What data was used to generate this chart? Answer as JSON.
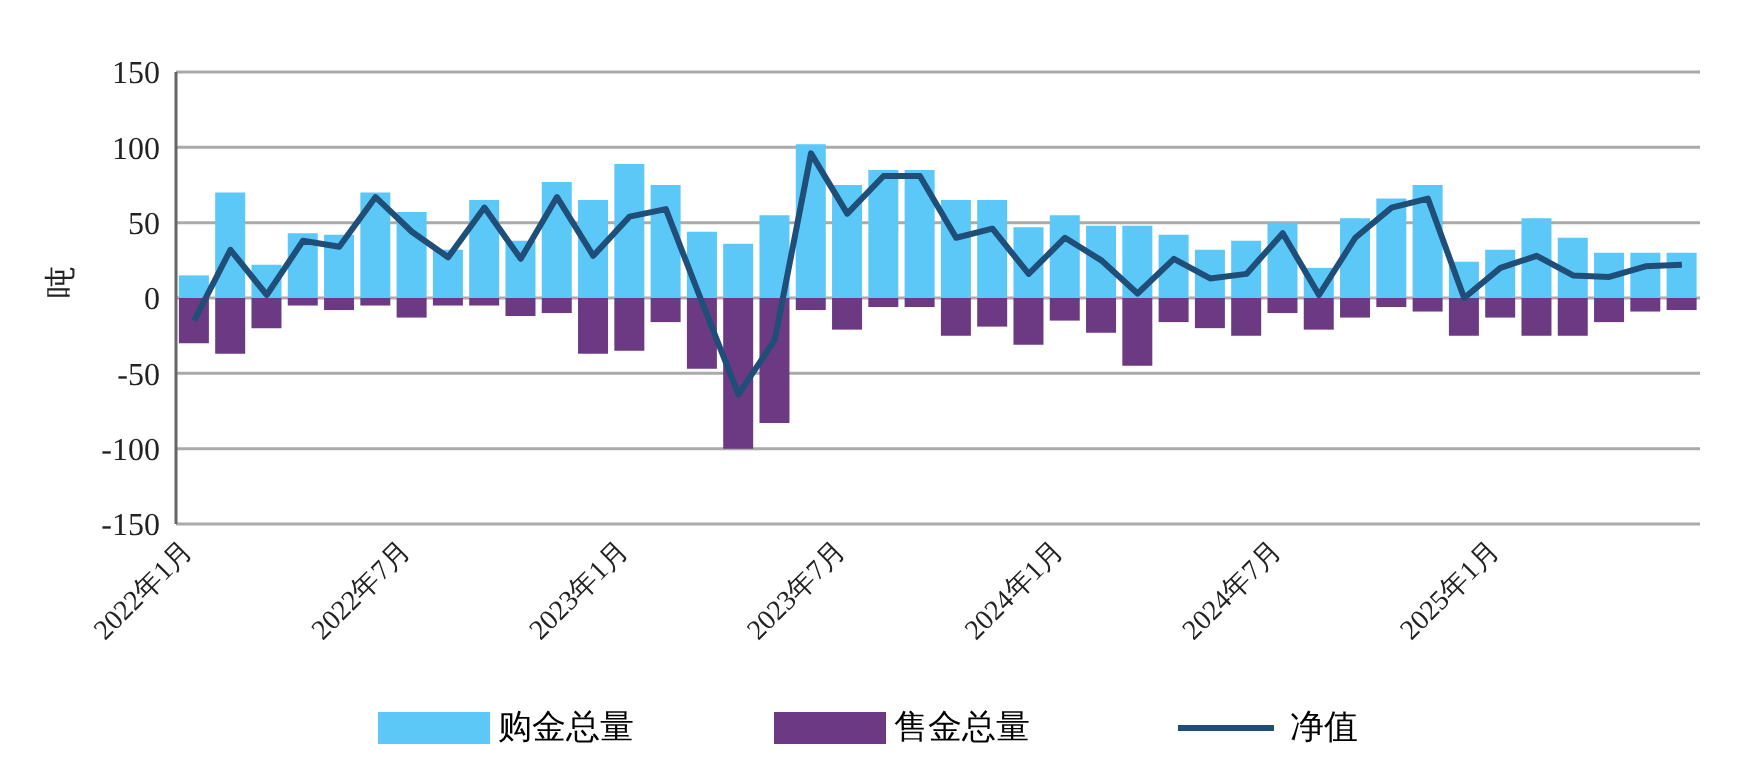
{
  "chart_data": {
    "type": "bar",
    "ylabel": "吨",
    "categories": [
      "2022年1月",
      null,
      null,
      null,
      null,
      null,
      "2022年7月",
      null,
      null,
      null,
      null,
      null,
      "2023年1月",
      null,
      null,
      null,
      null,
      null,
      "2023年7月",
      null,
      null,
      null,
      null,
      null,
      "2024年1月",
      null,
      null,
      null,
      null,
      null,
      "2024年7月",
      null,
      null,
      null,
      null,
      null,
      "2025年1月",
      null,
      null,
      null,
      null,
      null
    ],
    "series": [
      {
        "name": "购金总量",
        "color": "#5bc8f7",
        "values": [
          15,
          70,
          22,
          43,
          42,
          70,
          57,
          32,
          65,
          38,
          77,
          65,
          89,
          75,
          44,
          36,
          55,
          102,
          75,
          85,
          85,
          65,
          65,
          47,
          55,
          48,
          48,
          42,
          32,
          38,
          50,
          20,
          53,
          66,
          75,
          24,
          32,
          53,
          40,
          30,
          30,
          30
        ]
      },
      {
        "name": "售金总量",
        "color": "#6b3a83",
        "values": [
          -30,
          -37,
          -20,
          -5,
          -8,
          -5,
          -13,
          -5,
          -5,
          -12,
          -10,
          -37,
          -35,
          -16,
          -47,
          -100,
          -83,
          -8,
          -21,
          -6,
          -6,
          -25,
          -19,
          -31,
          -15,
          -23,
          -45,
          -16,
          -20,
          -25,
          -10,
          -21,
          -13,
          -6,
          -9,
          -25,
          -13,
          -25,
          -25,
          -16,
          -9,
          -8
        ]
      },
      {
        "name": "净值",
        "type": "line",
        "color": "#1f4e79",
        "values": [
          -15,
          32,
          2,
          38,
          34,
          67,
          44,
          27,
          60,
          26,
          67,
          28,
          54,
          59,
          -3,
          -64,
          -28,
          96,
          56,
          81,
          81,
          40,
          46,
          16,
          40,
          25,
          3,
          26,
          13,
          16,
          43,
          2,
          40,
          60,
          66,
          0,
          20,
          28,
          15,
          14,
          21,
          22
        ]
      }
    ],
    "stacked": true,
    "ylim": [
      -150,
      150
    ],
    "yticks": [
      -150,
      -100,
      -50,
      0,
      50,
      100,
      150
    ],
    "grid": "y",
    "legend": "bottom",
    "marker": "none"
  }
}
